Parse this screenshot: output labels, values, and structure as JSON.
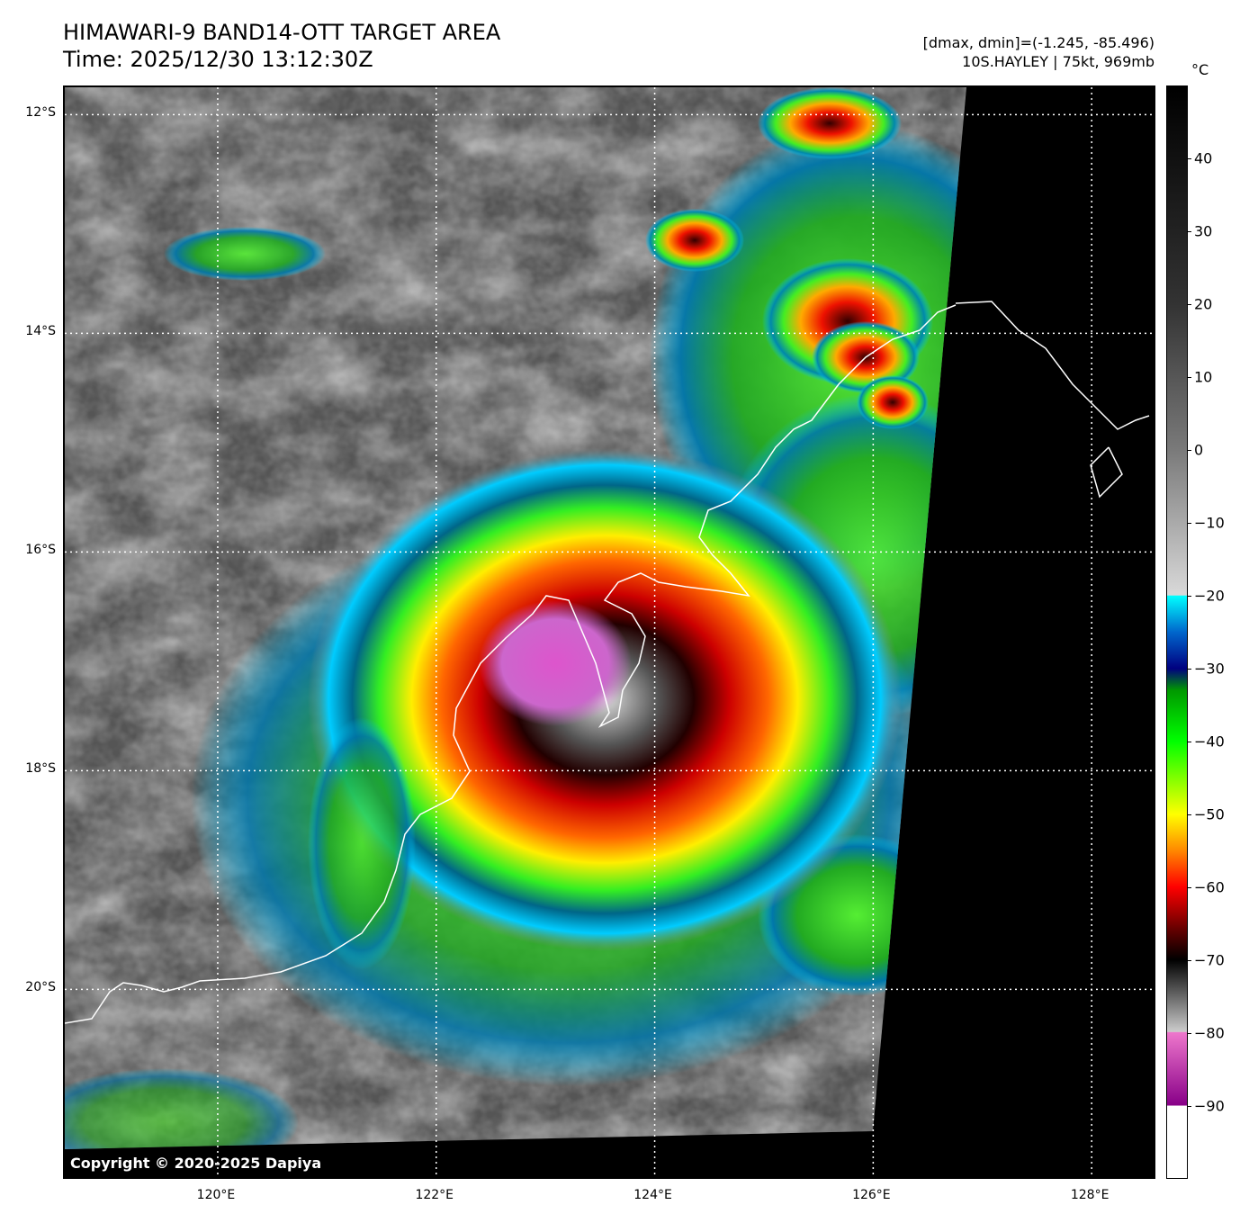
{
  "header": {
    "title_line1": "HIMAWARI-9 BAND14-OTT TARGET AREA",
    "title_line2": "Time: 2025/12/30 13:12:30Z",
    "range_text": "[dmax, dmin]=(-1.245, -85.496)",
    "storm_text": "10S.HAYLEY | 75kt, 969mb"
  },
  "map": {
    "copyright": "Copyright © 2020-2025 Dapiya",
    "lat_ticks": [
      {
        "label": "12°S",
        "value": -12
      },
      {
        "label": "14°S",
        "value": -14
      },
      {
        "label": "16°S",
        "value": -16
      },
      {
        "label": "18°S",
        "value": -18
      },
      {
        "label": "20°S",
        "value": -20
      }
    ],
    "lon_ticks": [
      {
        "label": "120°E",
        "value": 120
      },
      {
        "label": "122°E",
        "value": 122
      },
      {
        "label": "124°E",
        "value": 124
      },
      {
        "label": "126°E",
        "value": 126
      },
      {
        "label": "128°E",
        "value": 128
      }
    ],
    "extent": {
      "lon_min": 118.6,
      "lon_max": 128.6,
      "lat_max": -11.75,
      "lat_min": -21.75
    },
    "storm_center": {
      "lat": -17.1,
      "lon": 123.1
    },
    "coastline_color": "#ffffff",
    "grid_color": "#ffffff"
  },
  "colorbar": {
    "unit": "°C",
    "min": -100,
    "max": 50,
    "ticks": [
      40,
      30,
      20,
      10,
      0,
      -10,
      -20,
      -30,
      -40,
      -50,
      -60,
      -70,
      -80,
      -90
    ],
    "tick_labels": [
      "40",
      "30",
      "20",
      "10",
      "0",
      "−10",
      "−20",
      "−30",
      "−40",
      "−50",
      "−60",
      "−70",
      "−80",
      "−90"
    ],
    "stops": [
      {
        "t": 50,
        "color": "#000000"
      },
      {
        "t": 20,
        "color": "#333333"
      },
      {
        "t": 0,
        "color": "#7a7a7a"
      },
      {
        "t": -19.9,
        "color": "#d9d9d9"
      },
      {
        "t": -20,
        "color": "#00ffff"
      },
      {
        "t": -25,
        "color": "#0066cc"
      },
      {
        "t": -30,
        "color": "#000080"
      },
      {
        "t": -33,
        "color": "#009900"
      },
      {
        "t": -40,
        "color": "#00ff00"
      },
      {
        "t": -50,
        "color": "#ffff00"
      },
      {
        "t": -55,
        "color": "#ff8800"
      },
      {
        "t": -60,
        "color": "#ff0000"
      },
      {
        "t": -66,
        "color": "#600000"
      },
      {
        "t": -70,
        "color": "#000000"
      },
      {
        "t": -79.9,
        "color": "#cccccc"
      },
      {
        "t": -80,
        "color": "#ee77cc"
      },
      {
        "t": -90,
        "color": "#880088"
      },
      {
        "t": -90.1,
        "color": "#ffffff"
      },
      {
        "t": -100,
        "color": "#ffffff"
      }
    ]
  }
}
